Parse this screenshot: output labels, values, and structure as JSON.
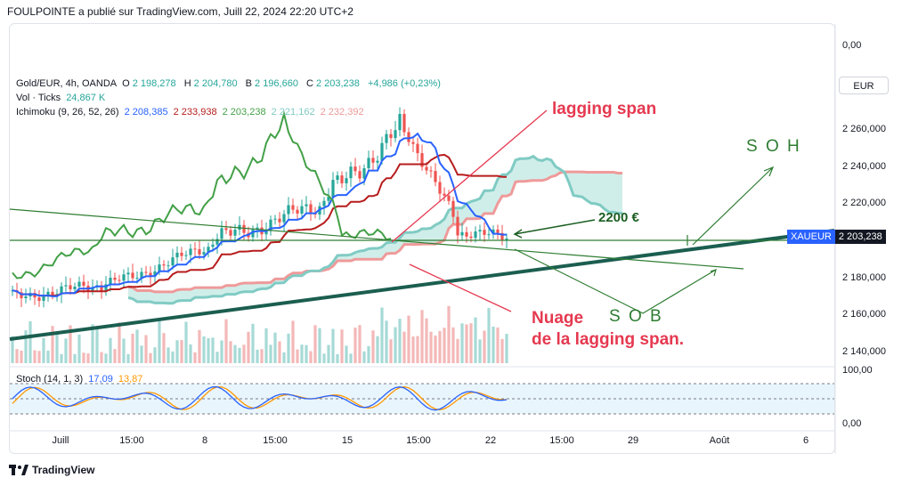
{
  "header": {
    "publisher_line": "FOULPOINTE a publié sur TradingView.com, Juill 22, 2024 22:20 UTC+2"
  },
  "legend": {
    "symbol_line": {
      "symbol": "Gold/EUR, 4h, OANDA",
      "o_label": "O",
      "o_value": "2 198,278",
      "h_label": "H",
      "h_value": "2 204,780",
      "b_label": "B",
      "b_value": "2 196,660",
      "c_label": "C",
      "c_value": "2 203,238",
      "change": "+4,986 (+0,23%)"
    },
    "volume_line": {
      "label": "Vol · Ticks",
      "value": "24,867 K"
    },
    "ichimoku_line": {
      "label": "Ichimoku (9, 26, 52, 26)",
      "v1": "2 208,385",
      "v2": "2 233,938",
      "v3": "2 203,238",
      "v4": "2 221,162",
      "v5": "2 232,392"
    },
    "stoch_line": {
      "label": "Stoch (14, 1, 3)",
      "k": "17,09",
      "d": "13,87"
    }
  },
  "currency_button": "EUR",
  "price_tag": {
    "symbol": "XAUEUR",
    "value": "2 203,238"
  },
  "price_axis": {
    "top_label": "0,00",
    "ticks": [
      {
        "label": "2 260,000",
        "value": 2260
      },
      {
        "label": "2 240,000",
        "value": 2240
      },
      {
        "label": "2 220,000",
        "value": 2220
      },
      {
        "label": "2 180,000",
        "value": 2180
      },
      {
        "label": "2 160,000",
        "value": 2160
      },
      {
        "label": "2 140,000",
        "value": 2140
      }
    ],
    "stoch_ticks": [
      "100,00",
      "0,00"
    ]
  },
  "time_axis": [
    "Juill",
    "15:00",
    "8",
    "15:00",
    "15",
    "15:00",
    "22",
    "15:00",
    "29",
    "Août",
    "6"
  ],
  "annotations": {
    "lagging_span": "lagging span",
    "soh": "S O H",
    "level": "2200 €",
    "sob": "S O B",
    "nuage_line1": "Nuage",
    "nuage_line2": "de la lagging span."
  },
  "colors": {
    "up": "#26a69a",
    "down": "#ef5350",
    "tenkan": "#2962ff",
    "kijun": "#b71c1c",
    "chikou": "#43a047",
    "span_a": "#80cbc4",
    "span_b": "#ef9a9a",
    "trend": "#1b5e50",
    "drawing_green": "#2e7d32",
    "drawing_red": "#e53950"
  },
  "brand": "TradingView",
  "icons": {
    "brand_logo": "tradingview-logo-icon"
  }
}
